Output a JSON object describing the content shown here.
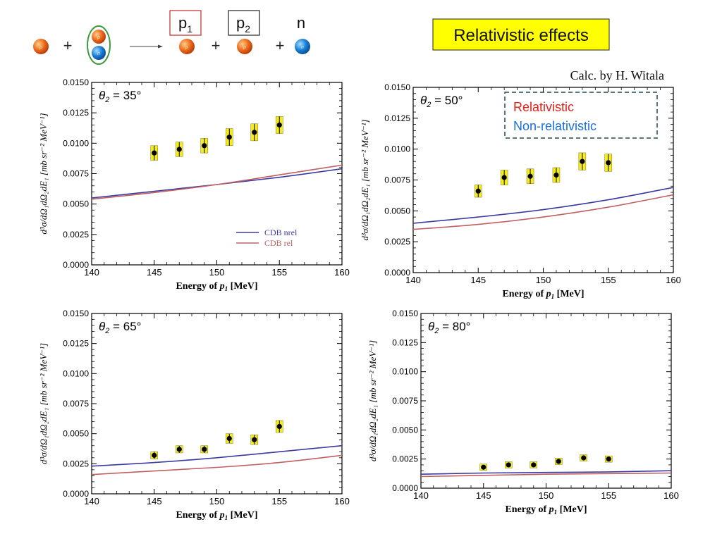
{
  "header": {
    "title": "Relativistic effects",
    "title_bg": "#ffff00",
    "credit": "Calc. by H. Witala",
    "reaction": {
      "proton_symbol": "p",
      "neutron_symbol": "n",
      "plus": "+",
      "product_labels": [
        "p",
        "p",
        "n"
      ],
      "product_subscripts": [
        "1",
        "2",
        ""
      ]
    }
  },
  "legend_box": {
    "relativistic": "Relativistic",
    "non_relativistic": "Non-relativistic",
    "relativistic_color": "#e0201a",
    "non_relativistic_color": "#1a6fd6",
    "border_color": "#1f4f4f"
  },
  "colors": {
    "nrel_curve": "#3a3aa0",
    "rel_curve": "#c06060",
    "marker": "#000000",
    "error_box": "#f5ec20",
    "proton_fill": "#e8621a",
    "neutron_fill": "#1a7fd0"
  },
  "axes_text": {
    "xlabel_prefix": "Energy of",
    "xlabel_var": "p",
    "xlabel_sub": "1",
    "xlabel_unit": "[MeV]",
    "ylabel": "d³σ/dΩ₁dΩ₂dE₁ [mb sr⁻² MeV⁻¹]",
    "theta_symbol": "θ",
    "theta_sub": "2",
    "x_ticks": [
      "140",
      "145",
      "150",
      "155",
      "160"
    ],
    "y_ticks": [
      "0.0000",
      "0.0025",
      "0.0050",
      "0.0075",
      "0.0100",
      "0.0125",
      "0.0150"
    ]
  },
  "inner_legend": {
    "nrel": "CDB nrel",
    "rel": "CDB rel"
  },
  "chart_data": [
    {
      "type": "line",
      "title": "θ2 = 35°",
      "angle": "35°",
      "xlabel": "Energy of p1 [MeV]",
      "ylabel": "d³σ/dΩ₁dΩ₂dE₁ [mb sr⁻² MeV⁻¹]",
      "xlim": [
        140,
        160
      ],
      "ylim": [
        0,
        0.015
      ],
      "series": [
        {
          "name": "CDB nrel",
          "x": [
            140,
            145,
            150,
            155,
            160
          ],
          "y": [
            0.0055,
            0.00605,
            0.0066,
            0.0072,
            0.0079
          ]
        },
        {
          "name": "CDB rel",
          "x": [
            140,
            145,
            150,
            155,
            160
          ],
          "y": [
            0.0054,
            0.00595,
            0.0066,
            0.0074,
            0.0082
          ]
        }
      ],
      "points": {
        "x": [
          145,
          147,
          149,
          151,
          153,
          155
        ],
        "y": [
          0.0092,
          0.0095,
          0.0098,
          0.0105,
          0.0109,
          0.0115
        ],
        "err": [
          0.0006,
          0.0006,
          0.0006,
          0.0007,
          0.0007,
          0.0007
        ]
      }
    },
    {
      "type": "line",
      "title": "θ2 = 50°",
      "angle": "50°",
      "xlabel": "Energy of p1 [MeV]",
      "ylabel": "d³σ/dΩ₁dΩ₂dE₁ [mb sr⁻² MeV⁻¹]",
      "xlim": [
        140,
        160
      ],
      "ylim": [
        0,
        0.015
      ],
      "series": [
        {
          "name": "CDB nrel",
          "x": [
            140,
            145,
            150,
            155,
            160
          ],
          "y": [
            0.004,
            0.0045,
            0.0051,
            0.0059,
            0.0069
          ]
        },
        {
          "name": "CDB rel",
          "x": [
            140,
            145,
            150,
            155,
            160
          ],
          "y": [
            0.0035,
            0.0039,
            0.0045,
            0.0053,
            0.0063
          ]
        }
      ],
      "points": {
        "x": [
          145,
          147,
          149,
          151,
          153,
          155
        ],
        "y": [
          0.0066,
          0.0077,
          0.0078,
          0.0079,
          0.009,
          0.0089
        ],
        "err": [
          0.0005,
          0.0006,
          0.0006,
          0.0006,
          0.0007,
          0.0007
        ]
      }
    },
    {
      "type": "line",
      "title": "θ2 = 65°",
      "angle": "65°",
      "xlabel": "Energy of p1 [MeV]",
      "ylabel": "d³σ/dΩ₁dΩ₂dE₁ [mb sr⁻² MeV⁻¹]",
      "xlim": [
        140,
        160
      ],
      "ylim": [
        0,
        0.015
      ],
      "series": [
        {
          "name": "CDB nrel",
          "x": [
            140,
            145,
            150,
            155,
            160
          ],
          "y": [
            0.0023,
            0.0026,
            0.003,
            0.0035,
            0.004
          ]
        },
        {
          "name": "CDB rel",
          "x": [
            140,
            145,
            150,
            155,
            160
          ],
          "y": [
            0.0016,
            0.0019,
            0.0022,
            0.0026,
            0.0032
          ]
        }
      ],
      "points": {
        "x": [
          145,
          147,
          149,
          151,
          153,
          155
        ],
        "y": [
          0.0032,
          0.0037,
          0.0037,
          0.0046,
          0.0045,
          0.0056
        ],
        "err": [
          0.0003,
          0.0003,
          0.0003,
          0.0004,
          0.0004,
          0.0005
        ]
      }
    },
    {
      "type": "line",
      "title": "θ2 = 80°",
      "angle": "80°",
      "xlabel": "Energy of p1 [MeV]",
      "ylabel": "d³σ/dΩ₁dΩ₂dE₁ [mb sr⁻² MeV⁻¹]",
      "xlim": [
        140,
        160
      ],
      "ylim": [
        0,
        0.015
      ],
      "series": [
        {
          "name": "CDB nrel",
          "x": [
            140,
            145,
            150,
            155,
            160
          ],
          "y": [
            0.0012,
            0.0013,
            0.00135,
            0.0014,
            0.0015
          ]
        },
        {
          "name": "CDB rel",
          "x": [
            140,
            145,
            150,
            155,
            160
          ],
          "y": [
            0.001,
            0.0011,
            0.0012,
            0.00125,
            0.0013
          ]
        }
      ],
      "points": {
        "x": [
          145,
          147,
          149,
          151,
          153,
          155
        ],
        "y": [
          0.0018,
          0.002,
          0.002,
          0.0023,
          0.0026,
          0.0025
        ],
        "err": [
          0.0001,
          0.0001,
          0.0001,
          0.00015,
          0.00015,
          0.00015
        ]
      }
    }
  ]
}
